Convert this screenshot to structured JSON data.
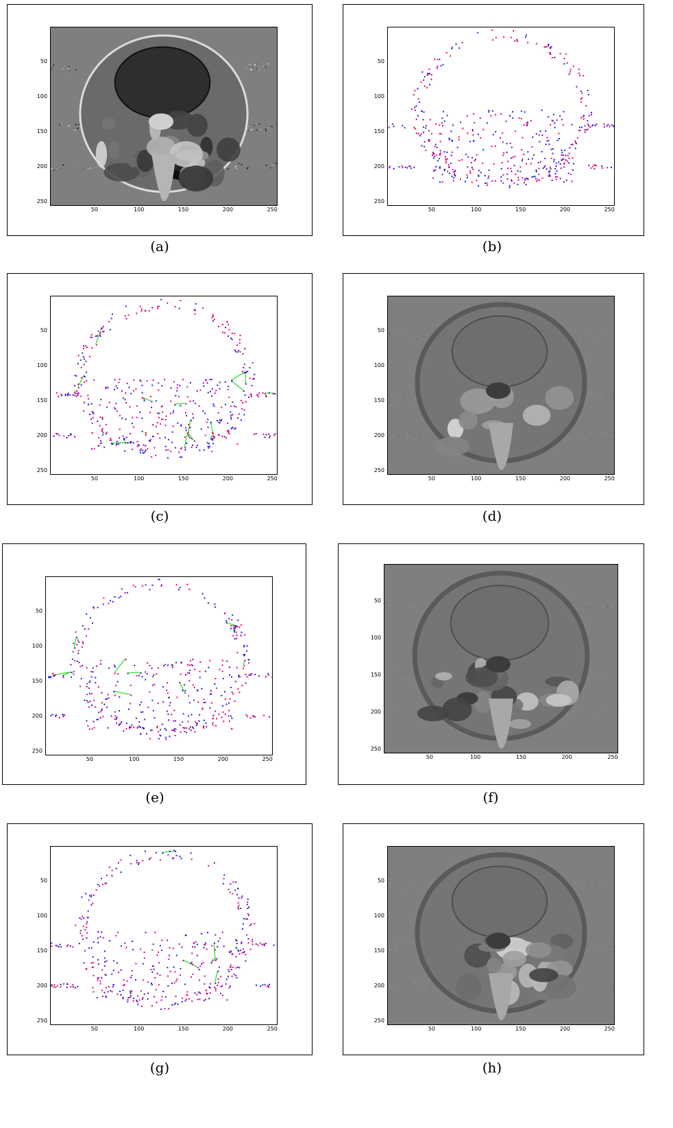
{
  "figure": {
    "x_ticks": [
      "50",
      "100",
      "150",
      "200",
      "250"
    ],
    "y_ticks": [
      "50",
      "100",
      "150",
      "200",
      "250"
    ],
    "panels": [
      {
        "id": "a",
        "caption": "(a)",
        "style": "wrapped-phase"
      },
      {
        "id": "b",
        "caption": "(b)",
        "style": "residues"
      },
      {
        "id": "c",
        "caption": "(c)",
        "style": "residues-cuts-dense"
      },
      {
        "id": "d",
        "caption": "(d)",
        "style": "unwrapped-smooth"
      },
      {
        "id": "e",
        "caption": "(e)",
        "style": "residues-cuts-sparse"
      },
      {
        "id": "f",
        "caption": "(f)",
        "style": "unwrapped-noisy"
      },
      {
        "id": "g",
        "caption": "(g)",
        "style": "residues-cuts-sparse"
      },
      {
        "id": "h",
        "caption": "(h)",
        "style": "unwrapped-noisy"
      }
    ]
  },
  "colors": {
    "positive_residue": "#e0007a",
    "negative_residue": "#2a1ad8",
    "branch_cut": "#22dd22",
    "background_gray": "#7f7f7f"
  }
}
